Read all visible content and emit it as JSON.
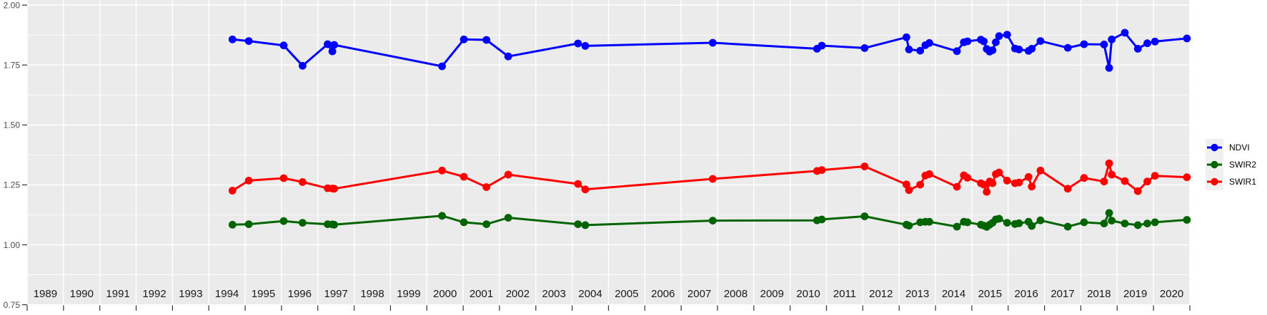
{
  "figure": {
    "panel_background": "#EBEBEB",
    "grid_color": "#FFFFFF",
    "y_axis_text_color": "#4D4D4D",
    "x_axis_text_color": "#1A1A1A",
    "tick_color": "#333333",
    "legend_key_background": "#F0F0F0"
  },
  "chart_data": {
    "type": "line",
    "title": "",
    "xlabel": "",
    "ylabel": "",
    "grid": true,
    "legend_position": "right",
    "x_range": [
      1989,
      2021
    ],
    "y_range": [
      0.75,
      2.0
    ],
    "x_tick_labels": [
      "1989",
      "1990",
      "1991",
      "1992",
      "1993",
      "1994",
      "1995",
      "1996",
      "1997",
      "1998",
      "1999",
      "2000",
      "2001",
      "2002",
      "2003",
      "2004",
      "2005",
      "2006",
      "2007",
      "2008",
      "2009",
      "2010",
      "2011",
      "2012",
      "2013",
      "2014",
      "2015",
      "2016",
      "2017",
      "2018",
      "2019",
      "2020"
    ],
    "y_tick_labels": [
      "2.00",
      "1.75",
      "1.50",
      "1.25",
      "1.00",
      "0.75"
    ],
    "y_tick_values": [
      2.0,
      1.75,
      1.5,
      1.25,
      1.0,
      0.75
    ],
    "y_minor_values": [
      1.875,
      1.625,
      1.375,
      1.125,
      0.875
    ],
    "x": [
      1994.65,
      1995.1,
      1996.06,
      1996.58,
      1997.27,
      1997.4,
      1997.45,
      2000.42,
      2001.02,
      2001.64,
      2002.24,
      2004.16,
      2004.36,
      2007.87,
      2010.74,
      2010.87,
      2012.05,
      2013.2,
      2013.27,
      2013.58,
      2013.72,
      2013.83,
      2014.59,
      2014.78,
      2014.88,
      2015.25,
      2015.33,
      2015.41,
      2015.49,
      2015.57,
      2015.66,
      2015.75,
      2015.97,
      2016.19,
      2016.3,
      2016.56,
      2016.65,
      2016.89,
      2017.64,
      2018.09,
      2018.64,
      2018.78,
      2018.85,
      2019.21,
      2019.57,
      2019.83,
      2020.04,
      2020.92
    ],
    "series": [
      {
        "name": "NDVI",
        "color": "#0000FF",
        "values": [
          1.857,
          1.85,
          1.832,
          1.747,
          1.837,
          1.807,
          1.834,
          1.745,
          1.857,
          1.855,
          1.786,
          1.84,
          1.83,
          1.843,
          1.818,
          1.831,
          1.821,
          1.866,
          1.815,
          1.81,
          1.833,
          1.842,
          1.808,
          1.845,
          1.849,
          1.856,
          1.849,
          1.817,
          1.806,
          1.812,
          1.845,
          1.871,
          1.877,
          1.819,
          1.815,
          1.809,
          1.818,
          1.85,
          1.822,
          1.837,
          1.836,
          1.738,
          1.857,
          1.885,
          1.818,
          1.841,
          1.848,
          1.861
        ]
      },
      {
        "name": "SWIR2",
        "color": "#006400",
        "values": [
          1.084,
          1.086,
          1.099,
          1.092,
          1.086,
          1.085,
          1.084,
          1.121,
          1.094,
          1.086,
          1.113,
          1.086,
          1.082,
          1.101,
          1.102,
          1.106,
          1.119,
          1.084,
          1.08,
          1.094,
          1.096,
          1.096,
          1.076,
          1.096,
          1.094,
          1.084,
          1.08,
          1.075,
          1.084,
          1.092,
          1.106,
          1.109,
          1.092,
          1.087,
          1.09,
          1.096,
          1.079,
          1.102,
          1.076,
          1.094,
          1.089,
          1.133,
          1.101,
          1.089,
          1.082,
          1.089,
          1.094,
          1.104
        ]
      },
      {
        "name": "SWIR1",
        "color": "#FF0000",
        "values": [
          1.226,
          1.268,
          1.278,
          1.262,
          1.236,
          1.235,
          1.234,
          1.31,
          1.284,
          1.241,
          1.293,
          1.254,
          1.231,
          1.275,
          1.308,
          1.312,
          1.327,
          1.252,
          1.228,
          1.251,
          1.289,
          1.295,
          1.242,
          1.29,
          1.28,
          1.257,
          1.251,
          1.221,
          1.264,
          1.257,
          1.295,
          1.302,
          1.268,
          1.257,
          1.26,
          1.283,
          1.243,
          1.31,
          1.234,
          1.279,
          1.264,
          1.34,
          1.293,
          1.266,
          1.224,
          1.264,
          1.288,
          1.282
        ]
      }
    ]
  }
}
